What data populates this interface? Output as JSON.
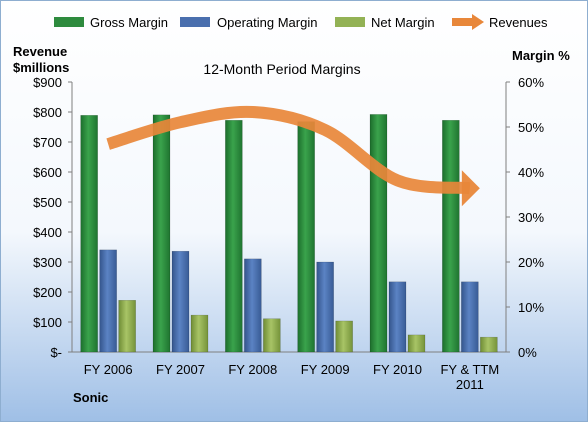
{
  "chart_data": {
    "type": "bar",
    "title": "12-Month Period Margins",
    "company_label": "Sonic",
    "left_axis_title": [
      "Revenue",
      "$millions"
    ],
    "right_axis_title": "Margin %",
    "categories": [
      [
        "FY 2006"
      ],
      [
        "FY 2007"
      ],
      [
        "FY 2008"
      ],
      [
        "FY 2009"
      ],
      [
        "FY 2010"
      ],
      [
        "FY & TTM",
        "2011"
      ]
    ],
    "left_axis": {
      "min": 0,
      "max": 900,
      "step": 100,
      "tick_labels": [
        "$-",
        "$100",
        "$200",
        "$300",
        "$400",
        "$500",
        "$600",
        "$700",
        "$800",
        "$900"
      ]
    },
    "right_axis": {
      "min": 0,
      "max": 60,
      "step": 10,
      "tick_labels": [
        "0%",
        "10%",
        "20%",
        "30%",
        "40%",
        "50%",
        "60%"
      ]
    },
    "series": [
      {
        "name": "Gross Margin",
        "kind": "bar",
        "axis": "right",
        "color": "#2e8b3e",
        "values": [
          52.6,
          52.7,
          51.5,
          51.2,
          52.8,
          51.5
        ]
      },
      {
        "name": "Operating Margin",
        "kind": "bar",
        "axis": "right",
        "color": "#4a6fae",
        "values": [
          22.7,
          22.4,
          20.7,
          20.0,
          15.6,
          15.6
        ]
      },
      {
        "name": "Net Margin",
        "kind": "bar",
        "axis": "right",
        "color": "#93b255",
        "values": [
          11.5,
          8.2,
          7.4,
          6.9,
          3.8,
          3.3
        ]
      },
      {
        "name": "Revenues",
        "kind": "line",
        "axis": "left",
        "color": "#e8873a",
        "values": [
          693,
          766,
          800,
          740,
          572,
          546
        ]
      }
    ],
    "grid": false,
    "legend_position": "top"
  },
  "colors": {
    "background_top": "#ffffff",
    "background_bottom": "#9fbfe6",
    "border": "#8eaed0"
  }
}
